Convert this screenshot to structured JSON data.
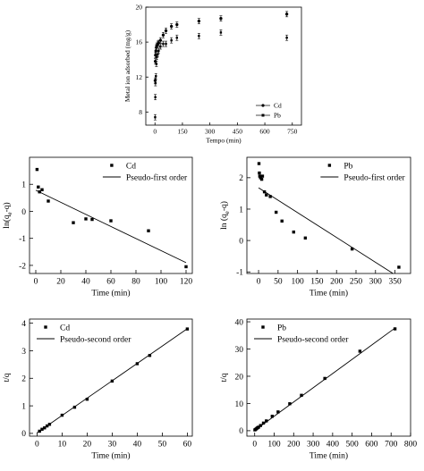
{
  "chart_data": [
    {
      "type": "scatter",
      "xlabel": "Tempo (min)",
      "ylabel": "Metal ion adsorbed (mg/g)",
      "xlim": [
        -50,
        800
      ],
      "ylim": [
        6.5,
        20
      ],
      "xticks": [
        0,
        150,
        300,
        450,
        600,
        750
      ],
      "yticks": [
        8,
        12,
        16,
        20
      ],
      "legend_position": "bottom-right",
      "series": [
        {
          "name": "Cd",
          "x": [
            1,
            2,
            3,
            5,
            8,
            10,
            15,
            20,
            30,
            45,
            60,
            90,
            120,
            240,
            360,
            720
          ],
          "y": [
            11.6,
            13.8,
            14.5,
            15.0,
            15.4,
            15.6,
            15.8,
            15.9,
            16.2,
            16.8,
            17.3,
            17.8,
            18.0,
            18.4,
            18.7,
            19.2
          ]
        },
        {
          "name": "Pb",
          "x": [
            1,
            2,
            3,
            5,
            8,
            10,
            15,
            20,
            30,
            45,
            60,
            90,
            120,
            240,
            360,
            720
          ],
          "y": [
            7.4,
            9.7,
            11.3,
            12.1,
            13.5,
            14.3,
            14.6,
            15.0,
            15.5,
            15.8,
            15.8,
            16.2,
            16.5,
            16.7,
            17.1,
            16.5
          ]
        }
      ]
    },
    {
      "type": "scatter",
      "xlabel": "Time (min)",
      "ylabel": "ln(qe-q)",
      "xlim": [
        -5,
        125
      ],
      "ylim": [
        -2.3,
        2.0
      ],
      "xticks": [
        0,
        20,
        40,
        60,
        80,
        100,
        120
      ],
      "yticks": [
        -2,
        -1,
        0,
        1
      ],
      "legend_position": "top-right",
      "series": [
        {
          "name": "Cd",
          "x": [
            1,
            2,
            3,
            5,
            10,
            30,
            40,
            45,
            60,
            90,
            120
          ],
          "y": [
            1.55,
            0.9,
            0.72,
            0.8,
            0.38,
            -0.42,
            -0.28,
            -0.3,
            -0.35,
            -0.72,
            -2.05
          ]
        },
        {
          "name": "Pseudo-first order",
          "line": true,
          "x": [
            0,
            120
          ],
          "y": [
            0.78,
            -1.9
          ]
        }
      ]
    },
    {
      "type": "scatter",
      "xlabel": "Time (min)",
      "ylabel": "ln (qe-q)",
      "xlim": [
        -30,
        390
      ],
      "ylim": [
        -1.05,
        2.65
      ],
      "xticks": [
        0,
        50,
        100,
        150,
        200,
        250,
        300,
        350
      ],
      "yticks": [
        -1,
        0,
        1,
        2
      ],
      "legend_position": "top-right",
      "series": [
        {
          "name": "Pb",
          "x": [
            1,
            2,
            3,
            5,
            8,
            10,
            15,
            20,
            30,
            45,
            60,
            90,
            120,
            240,
            360
          ],
          "y": [
            2.45,
            2.15,
            2.05,
            2.0,
            1.95,
            2.05,
            1.55,
            1.45,
            1.4,
            0.9,
            0.62,
            0.27,
            0.08,
            -0.27,
            -0.85
          ]
        },
        {
          "name": "Pseudo-first order",
          "line": true,
          "x": [
            0,
            345
          ],
          "y": [
            1.68,
            -1.05
          ]
        }
      ]
    },
    {
      "type": "scatter",
      "xlabel": "Time (min)",
      "ylabel": "t/q",
      "xlim": [
        -3,
        62
      ],
      "ylim": [
        -0.1,
        4.15
      ],
      "xticks": [
        0,
        10,
        20,
        30,
        40,
        50,
        60
      ],
      "yticks": [
        0,
        1,
        2,
        3,
        4
      ],
      "legend_position": "top-left",
      "series": [
        {
          "name": "Cd",
          "x": [
            1,
            2,
            3,
            4,
            5,
            10,
            15,
            20,
            30,
            40,
            45,
            60
          ],
          "y": [
            0.08,
            0.15,
            0.2,
            0.27,
            0.33,
            0.66,
            0.95,
            1.24,
            1.9,
            2.53,
            2.83,
            3.79
          ]
        },
        {
          "name": "Pseudo-second order",
          "line": true,
          "x": [
            0,
            60
          ],
          "y": [
            0.02,
            3.8
          ]
        }
      ]
    },
    {
      "type": "scatter",
      "xlabel": "Time (min)",
      "ylabel": "t/q",
      "xlim": [
        -40,
        800
      ],
      "ylim": [
        -2,
        41
      ],
      "xticks": [
        0,
        100,
        200,
        300,
        400,
        500,
        600,
        700,
        800
      ],
      "yticks": [
        0,
        10,
        20,
        30,
        40
      ],
      "legend_position": "top-left",
      "series": [
        {
          "name": "Pb",
          "x": [
            1,
            5,
            10,
            15,
            20,
            30,
            45,
            60,
            90,
            120,
            180,
            240,
            360,
            540,
            720
          ],
          "y": [
            0.3,
            0.5,
            0.8,
            1.1,
            1.3,
            1.9,
            2.8,
            3.6,
            5.3,
            6.9,
            9.9,
            13.0,
            19.2,
            29.2,
            37.4
          ]
        },
        {
          "name": "Pseudo-second order",
          "line": true,
          "x": [
            0,
            720
          ],
          "y": [
            0.1,
            37.7
          ]
        }
      ]
    }
  ]
}
